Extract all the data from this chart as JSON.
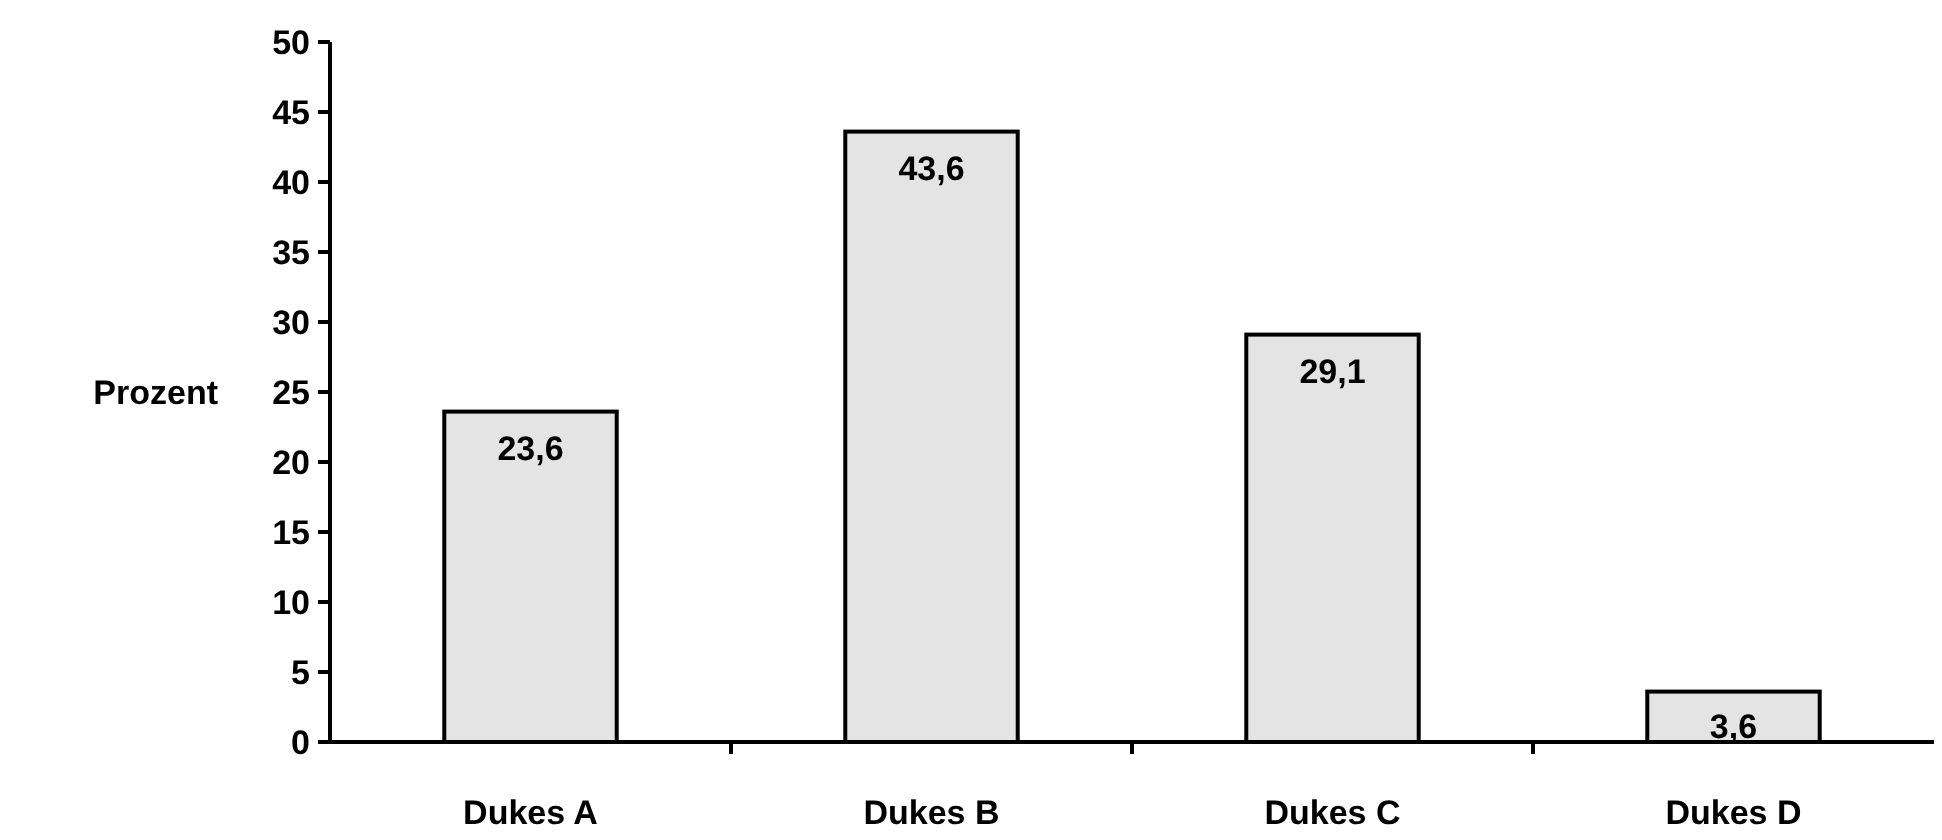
{
  "chart_data": {
    "type": "bar",
    "ylabel": "Prozent",
    "categories": [
      "Dukes A",
      "Dukes B",
      "Dukes C",
      "Dukes D"
    ],
    "values": [
      23.6,
      43.6,
      29.1,
      3.6
    ],
    "value_labels": [
      "23,6",
      "43,6",
      "29,1",
      "3,6"
    ],
    "color": "#e4e4e4",
    "ylim": [
      0,
      50
    ],
    "yticks": [
      0,
      5,
      10,
      15,
      20,
      25,
      30,
      35,
      40,
      45,
      50
    ],
    "grid": false
  }
}
